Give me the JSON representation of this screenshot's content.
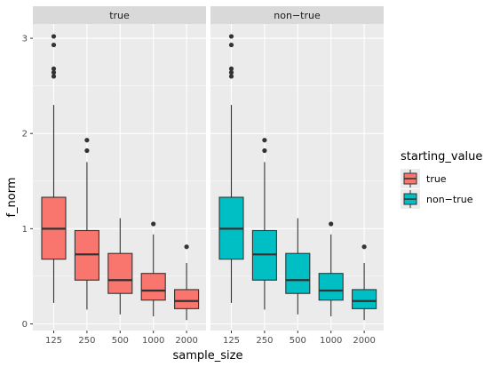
{
  "chart_data": {
    "type": "boxplot",
    "xlabel": "sample_size",
    "ylabel": "f_norm",
    "ylim": [
      -0.07,
      3.15
    ],
    "y_ticks": [
      0,
      1,
      2,
      3
    ],
    "categories": [
      "125",
      "250",
      "500",
      "1000",
      "2000"
    ],
    "facets": [
      {
        "strip": "true",
        "fill_group": "true",
        "boxes": [
          {
            "category": "125",
            "q1": 0.68,
            "median": 1.0,
            "q3": 1.33,
            "whisker_low": 0.22,
            "whisker_high": 2.3,
            "outliers": [
              2.6,
              2.64,
              2.68,
              2.93,
              3.02
            ]
          },
          {
            "category": "250",
            "q1": 0.46,
            "median": 0.73,
            "q3": 0.98,
            "whisker_low": 0.15,
            "whisker_high": 1.7,
            "outliers": [
              1.82,
              1.93
            ]
          },
          {
            "category": "500",
            "q1": 0.32,
            "median": 0.46,
            "q3": 0.74,
            "whisker_low": 0.1,
            "whisker_high": 1.11,
            "outliers": []
          },
          {
            "category": "1000",
            "q1": 0.25,
            "median": 0.35,
            "q3": 0.53,
            "whisker_low": 0.08,
            "whisker_high": 0.94,
            "outliers": [
              1.05
            ]
          },
          {
            "category": "2000",
            "q1": 0.16,
            "median": 0.24,
            "q3": 0.36,
            "whisker_low": 0.04,
            "whisker_high": 0.64,
            "outliers": [
              0.81
            ]
          }
        ]
      },
      {
        "strip": "non−true",
        "fill_group": "non−true",
        "boxes": [
          {
            "category": "125",
            "q1": 0.68,
            "median": 1.0,
            "q3": 1.33,
            "whisker_low": 0.22,
            "whisker_high": 2.3,
            "outliers": [
              2.6,
              2.64,
              2.68,
              2.93,
              3.02
            ]
          },
          {
            "category": "250",
            "q1": 0.46,
            "median": 0.73,
            "q3": 0.98,
            "whisker_low": 0.15,
            "whisker_high": 1.7,
            "outliers": [
              1.82,
              1.93
            ]
          },
          {
            "category": "500",
            "q1": 0.32,
            "median": 0.46,
            "q3": 0.74,
            "whisker_low": 0.1,
            "whisker_high": 1.11,
            "outliers": []
          },
          {
            "category": "1000",
            "q1": 0.25,
            "median": 0.35,
            "q3": 0.53,
            "whisker_low": 0.08,
            "whisker_high": 0.94,
            "outliers": [
              1.05
            ]
          },
          {
            "category": "2000",
            "q1": 0.16,
            "median": 0.24,
            "q3": 0.36,
            "whisker_low": 0.04,
            "whisker_high": 0.64,
            "outliers": [
              0.81
            ]
          }
        ]
      }
    ],
    "legend": {
      "title": "starting_value",
      "placement": "right",
      "entries": [
        {
          "label": "true",
          "color": "#F8766D"
        },
        {
          "label": "non−true",
          "color": "#00BFC4"
        }
      ]
    },
    "colors": {
      "panel_background": "#EBEBEB",
      "strip_background": "#D9D9D9",
      "grid": "#FFFFFF",
      "box_line": "#333333",
      "true": "#F8766D",
      "non_true": "#00BFC4"
    },
    "grid": true
  }
}
